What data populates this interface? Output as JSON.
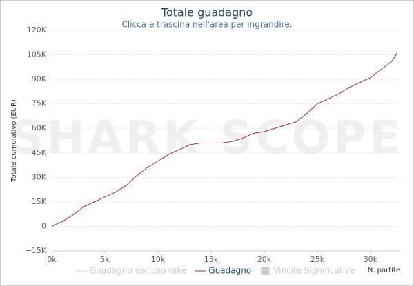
{
  "chart_data": {
    "type": "line",
    "title": "Totale guadagno",
    "subtitle": "Clicca e trascina nell'area per ingrandire.",
    "watermark": "SHARK SCOPE",
    "y_label": "Totale cumulativo (EUR)",
    "x_label": "N. partite",
    "x": [
      0,
      1000,
      2000,
      3000,
      4000,
      5000,
      6000,
      7000,
      8000,
      9000,
      10000,
      11000,
      12000,
      13000,
      14000,
      15000,
      16000,
      17000,
      18000,
      19000,
      20000,
      21000,
      22000,
      23000,
      24000,
      25000,
      26000,
      27000,
      28000,
      29000,
      30000,
      31000,
      32000,
      32500
    ],
    "series": [
      {
        "name": "Guadagno",
        "color": "#a52a2a",
        "values": [
          0,
          3000,
          7000,
          12000,
          15000,
          18000,
          21000,
          25000,
          31000,
          36000,
          40000,
          44000,
          47000,
          50000,
          51000,
          51000,
          51000,
          52000,
          54000,
          57000,
          58000,
          60000,
          62000,
          64000,
          69000,
          75000,
          78000,
          81000,
          85000,
          88000,
          91000,
          96000,
          101000,
          106000
        ]
      }
    ],
    "hidden_series": [
      {
        "name": "Guadagno escluso rake",
        "color": "#cccccc",
        "symbol": "line",
        "order": 0
      },
      {
        "name": "Vincite Significative",
        "color": "#cccccc",
        "symbol": "box",
        "order": 2
      }
    ],
    "xlim": [
      0,
      32800
    ],
    "ylim": [
      -15000,
      120000
    ],
    "xticks": [
      {
        "value": 0,
        "label": "0k"
      },
      {
        "value": 5000,
        "label": "5k"
      },
      {
        "value": 10000,
        "label": "10k"
      },
      {
        "value": 15000,
        "label": "15k"
      },
      {
        "value": 20000,
        "label": "20k"
      },
      {
        "value": 25000,
        "label": "25k"
      },
      {
        "value": 30000,
        "label": "30k"
      }
    ],
    "yticks": [
      {
        "value": -15000,
        "label": "−15K"
      },
      {
        "value": 0,
        "label": "0"
      },
      {
        "value": 15000,
        "label": "15K"
      },
      {
        "value": 30000,
        "label": "30K"
      },
      {
        "value": 45000,
        "label": "45K"
      },
      {
        "value": 60000,
        "label": "60K"
      },
      {
        "value": 75000,
        "label": "75K"
      },
      {
        "value": 90000,
        "label": "90K"
      },
      {
        "value": 105000,
        "label": "105K"
      },
      {
        "value": 120000,
        "label": "120K"
      }
    ],
    "grid": true
  }
}
